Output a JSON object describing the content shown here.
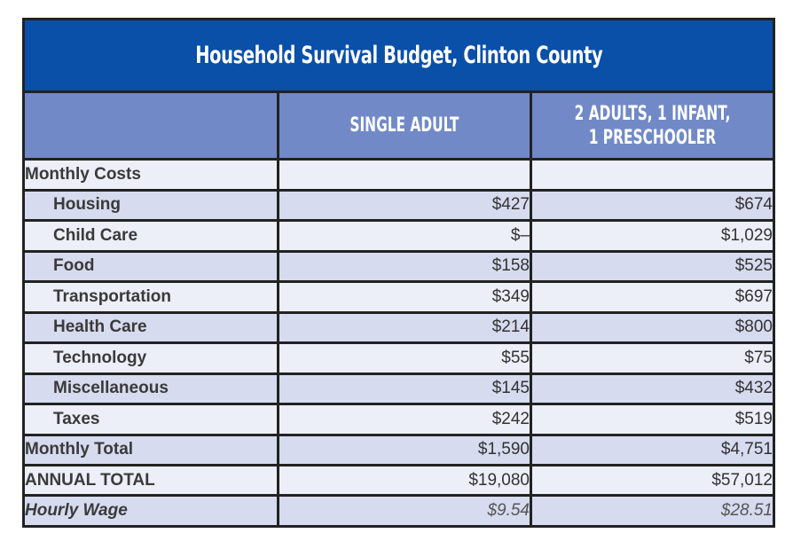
{
  "title": "Household Survival Budget, Clinton County",
  "columns": {
    "single_adult": "SINGLE ADULT",
    "family_line1": "2 ADULTS, 1 INFANT,",
    "family_line2": "1 PRESCHOOLER"
  },
  "section_label": "Monthly Costs",
  "rows": [
    {
      "label": "Housing",
      "single": "$427",
      "family": "$674"
    },
    {
      "label": "Child Care",
      "single": "$–",
      "family": "$1,029"
    },
    {
      "label": "Food",
      "single": "$158",
      "family": "$525"
    },
    {
      "label": "Transportation",
      "single": "$349",
      "family": "$697"
    },
    {
      "label": "Health Care",
      "single": "$214",
      "family": "$800"
    },
    {
      "label": "Technology",
      "single": "$55",
      "family": "$75"
    },
    {
      "label": "Miscellaneous",
      "single": "$145",
      "family": "$432"
    },
    {
      "label": "Taxes",
      "single": "$242",
      "family": "$519"
    }
  ],
  "monthly_total": {
    "label": "Monthly Total",
    "single": "$1,590",
    "family": "$4,751"
  },
  "annual_total": {
    "label": "ANNUAL TOTAL",
    "single": "$19,080",
    "family": "$57,012"
  },
  "hourly_wage": {
    "label": "Hourly Wage",
    "single": "$9.54",
    "family": "$28.51"
  }
}
